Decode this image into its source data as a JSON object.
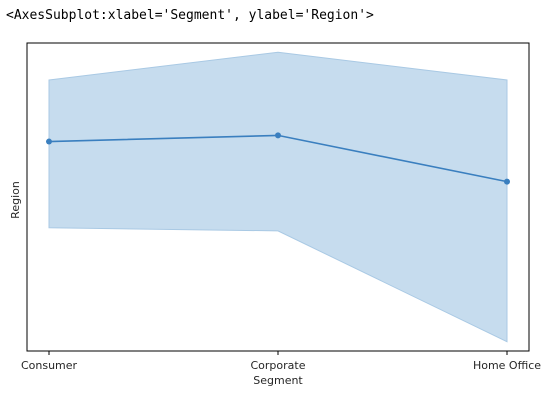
{
  "output_repr": "<AxesSubplot:xlabel='Segment', ylabel='Region'>",
  "chart_data": {
    "type": "line",
    "title": "",
    "xlabel": "Segment",
    "ylabel": "Region",
    "categories": [
      "Consumer",
      "Corporate",
      "Home Office"
    ],
    "series": [
      {
        "values": [
          0.6,
          0.62,
          0.47
        ],
        "ci_lower": [
          0.32,
          0.31,
          -0.05
        ],
        "ci_upper": [
          0.8,
          0.89,
          0.8
        ]
      }
    ],
    "ylim": [
      -0.08,
      0.92
    ],
    "yticks_shown": false,
    "grid": false,
    "colors": {
      "line": "#3a7fbf",
      "band": "#c6dcee",
      "band_edge": "#a9c9e4",
      "spine": "#000000"
    }
  }
}
